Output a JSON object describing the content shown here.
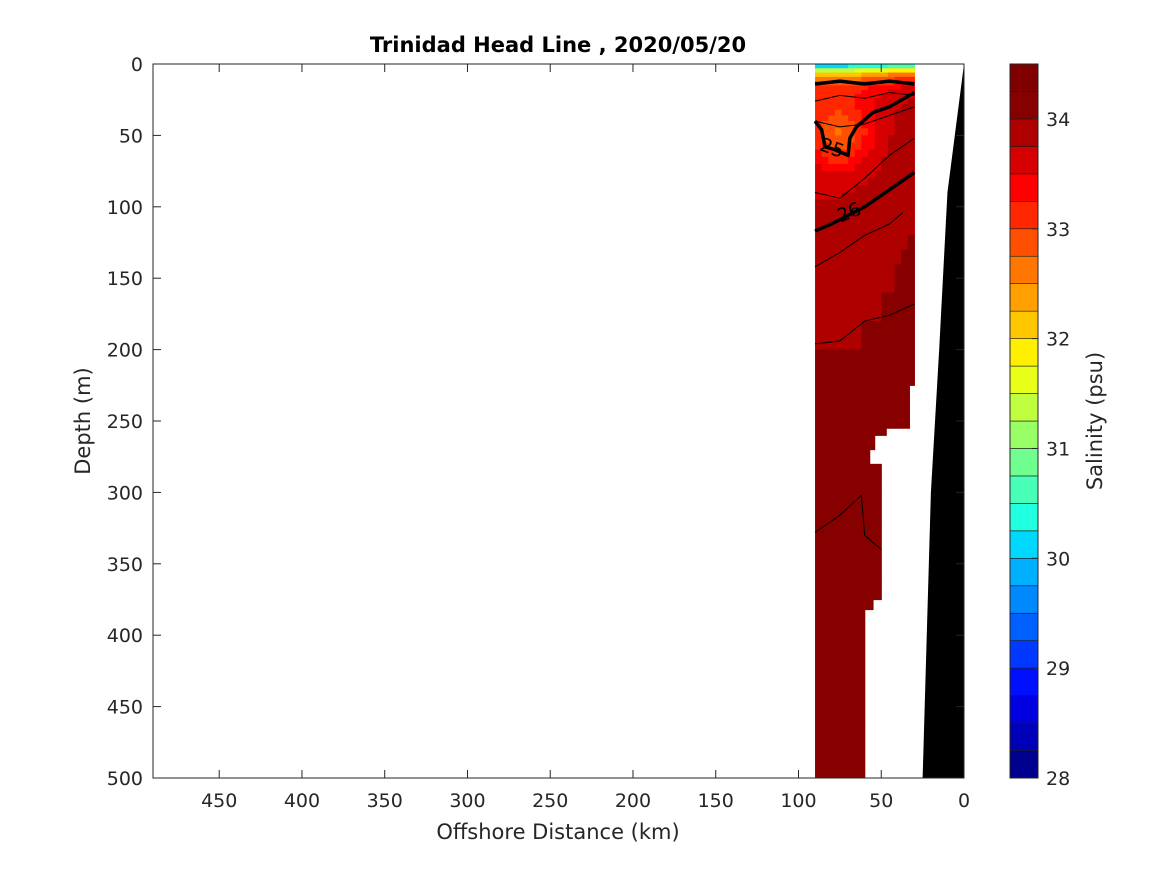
{
  "chart_data": {
    "type": "heatmap",
    "title": "Trinidad Head Line , 2020/05/20",
    "xlabel": "Offshore Distance (km)",
    "ylabel": "Depth (m)",
    "xlim": [
      490,
      0
    ],
    "ylim": [
      0,
      500
    ],
    "x_reversed": true,
    "y_reversed": true,
    "x_ticks": [
      450,
      400,
      350,
      300,
      250,
      200,
      150,
      100,
      50,
      0
    ],
    "y_ticks": [
      0,
      50,
      100,
      150,
      200,
      250,
      300,
      350,
      400,
      450,
      500
    ],
    "grid": false,
    "colorbar": {
      "label": "Salinity (psu)",
      "min": 28,
      "max": 34.5,
      "step": 0.25,
      "ticks": [
        28,
        29,
        30,
        31,
        32,
        33,
        34
      ],
      "colormap": [
        "#00008f",
        "#0000b8",
        "#0000e0",
        "#0010ff",
        "#0038ff",
        "#0060ff",
        "#0088ff",
        "#00b0ff",
        "#00d8ff",
        "#20ffdf",
        "#48ffb7",
        "#70ff8f",
        "#98ff67",
        "#c0ff3f",
        "#e8ff17",
        "#ffef00",
        "#ffc700",
        "#ff9f00",
        "#ff7700",
        "#ff4f00",
        "#ff2700",
        "#ff0000",
        "#d70000",
        "#af0000",
        "#870000",
        "#800000"
      ]
    },
    "section": {
      "x_range_km": [
        30,
        90
      ],
      "depth_range_m": [
        0,
        500
      ],
      "surface_min_salinity": 30.2,
      "deep_salinity": 34.1
    },
    "density_contours": [
      {
        "label": "25",
        "depth_m": 60
      },
      {
        "label": "26",
        "depth_m": 105
      }
    ],
    "bathymetry": {
      "color": "#000000",
      "points": [
        [
          0,
          0
        ],
        [
          10,
          90
        ],
        [
          15,
          200
        ],
        [
          20,
          300
        ],
        [
          25,
          500
        ]
      ]
    }
  }
}
